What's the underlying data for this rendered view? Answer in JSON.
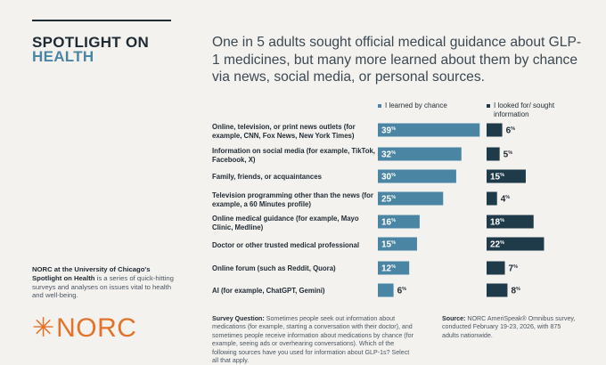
{
  "header": {
    "spotlight_line1": "SPOTLIGHT ON",
    "spotlight_line2": "HEALTH",
    "headline": "One in 5 adults sought official medical guidance about GLP-1 medicines, but many more learned about them by chance via news, social media, or personal sources."
  },
  "legend": {
    "chance": "I learned by chance",
    "sought": "I looked for/ sought information"
  },
  "colors": {
    "chance": "#4a86a3",
    "sought": "#1f3b49",
    "accent": "#e4732a"
  },
  "chart_data": {
    "type": "bar",
    "orientation": "horizontal",
    "categories": [
      "Online, television, or print news outlets (for example, CNN, Fox News, New York Times)",
      "Information on social media (for example, TikTok, Facebook, X)",
      "Family, friends, or acquaintances",
      "Television programming other than the news (for example, a 60 Minutes profile)",
      "Online medical guidance (for example, Mayo Clinic, Medline)",
      "Doctor or other trusted medical professional",
      "Online forum (such as Reddit, Quora)",
      "AI (for example, ChatGPT, Gemini)"
    ],
    "series": [
      {
        "name": "I learned by chance",
        "values": [
          39,
          32,
          30,
          25,
          16,
          15,
          12,
          6
        ]
      },
      {
        "name": "I looked for/ sought information",
        "values": [
          6,
          5,
          15,
          4,
          18,
          22,
          7,
          8
        ]
      }
    ],
    "value_suffix": "%"
  },
  "sidebar": {
    "org_bold": "NORC at the University of Chicago's",
    "series_bold": "Spotlight on Health",
    "text": "is a series of quick-hitting surveys and analyses on issues vital to health and well-being."
  },
  "logo": {
    "text": "NORC"
  },
  "footnote": {
    "question_label": "Survey Question:",
    "question": "Sometimes people seek out information about medications (for example, starting a conversation with their doctor), and sometimes people receive information about medications by chance (for example, seeing ads or overhearing conversations). Which of the following sources have you used for information about GLP-1s? Select all that apply.",
    "source_label": "Source:",
    "source": "NORC AmeriSpeak® Omnibus survey, conducted February 19-23, 2026, with 875 adults nationwide."
  }
}
